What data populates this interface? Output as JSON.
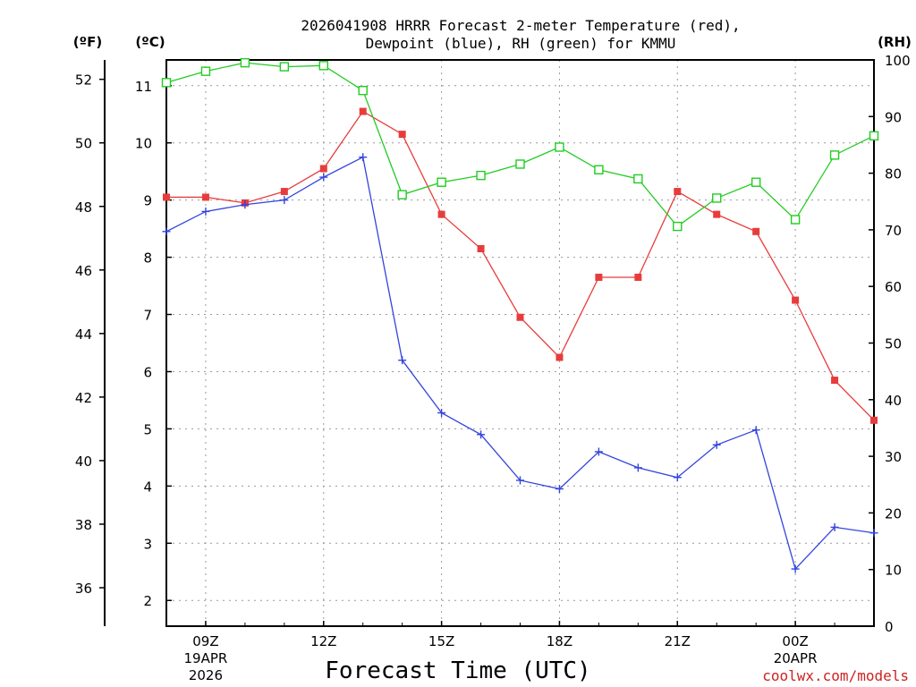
{
  "chart_data": {
    "type": "line",
    "title_line1": "2026041908 HRRR Forecast 2-meter Temperature (red),",
    "title_line2": "Dewpoint (blue), RH (green) for KMMU",
    "xlabel": "Forecast Time (UTC)",
    "credit": "coolwx.com/models",
    "unit_f": "(ºF)",
    "unit_c": "(ºC)",
    "unit_rh": "(RH)",
    "x_hours": [
      8,
      9,
      10,
      11,
      12,
      13,
      14,
      15,
      16,
      17,
      18,
      19,
      20,
      21,
      22,
      23,
      0,
      1,
      2
    ],
    "xlim_hours_since_08z": [
      0,
      18
    ],
    "c_lim": [
      1.55,
      11.45
    ],
    "rh_lim": [
      0,
      100
    ],
    "x_ticks": [
      {
        "label": "09Z",
        "hour_offset": 1,
        "sub1": "19APR",
        "sub2": "2026"
      },
      {
        "label": "12Z",
        "hour_offset": 4,
        "sub1": "",
        "sub2": ""
      },
      {
        "label": "15Z",
        "hour_offset": 7,
        "sub1": "",
        "sub2": ""
      },
      {
        "label": "18Z",
        "hour_offset": 10,
        "sub1": "",
        "sub2": ""
      },
      {
        "label": "21Z",
        "hour_offset": 13,
        "sub1": "",
        "sub2": ""
      },
      {
        "label": "00Z",
        "hour_offset": 16,
        "sub1": "20APR",
        "sub2": ""
      }
    ],
    "c_ticks": [
      2,
      3,
      4,
      5,
      6,
      7,
      8,
      9,
      10,
      11
    ],
    "f_ticks": [
      36,
      38,
      40,
      42,
      44,
      46,
      48,
      50,
      52
    ],
    "rh_ticks": [
      0,
      10,
      20,
      30,
      40,
      50,
      60,
      70,
      80,
      90,
      100
    ],
    "series": [
      {
        "name": "Temperature",
        "color": "#e83c3c",
        "marker": "filled-square",
        "axis": "c",
        "values": [
          9.05,
          9.05,
          8.95,
          9.15,
          9.55,
          10.55,
          10.15,
          8.75,
          8.15,
          6.95,
          6.25,
          7.65,
          7.65,
          9.15,
          8.75,
          8.45,
          7.25,
          5.85,
          5.15
        ]
      },
      {
        "name": "Dewpoint",
        "color": "#3344dd",
        "marker": "plus",
        "axis": "c",
        "values": [
          8.45,
          8.8,
          8.92,
          9.0,
          9.4,
          9.75,
          6.2,
          5.28,
          4.9,
          4.1,
          3.95,
          4.6,
          4.32,
          4.15,
          4.72,
          4.98,
          2.55,
          3.28,
          3.18
        ]
      },
      {
        "name": "RH",
        "color": "#22cc22",
        "marker": "open-square",
        "axis": "rh",
        "values": [
          96,
          98,
          99.5,
          98.8,
          99,
          94.6,
          76.2,
          78.4,
          79.6,
          81.6,
          84.6,
          80.6,
          79,
          70.6,
          75.6,
          78.4,
          71.8,
          83.2,
          86.6
        ]
      }
    ]
  }
}
